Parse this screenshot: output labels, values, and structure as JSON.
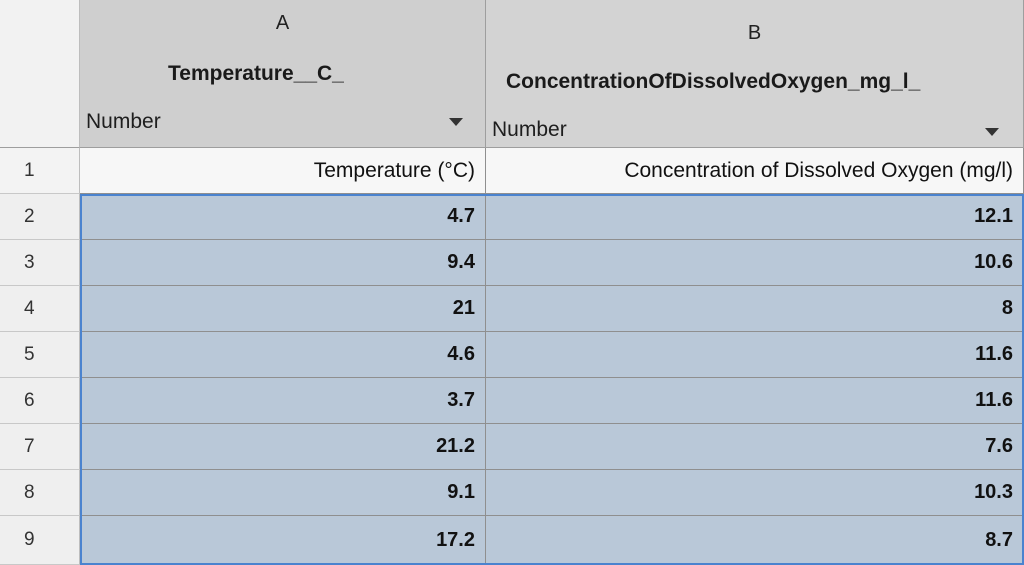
{
  "columns": [
    {
      "letter": "A",
      "name": "Temperature__C_",
      "type": "Number"
    },
    {
      "letter": "B",
      "name": "ConcentrationOfDissolvedOxygen_mg_l_",
      "type": "Number"
    }
  ],
  "rows": [
    {
      "num": "1",
      "a": "Temperature (°C)",
      "b": "Concentration of Dissolved Oxygen (mg/l)"
    },
    {
      "num": "2",
      "a": "4.7",
      "b": "12.1"
    },
    {
      "num": "3",
      "a": "9.4",
      "b": "10.6"
    },
    {
      "num": "4",
      "a": "21",
      "b": "8"
    },
    {
      "num": "5",
      "a": "4.6",
      "b": "11.6"
    },
    {
      "num": "6",
      "a": "3.7",
      "b": "11.6"
    },
    {
      "num": "7",
      "a": "21.2",
      "b": "7.6"
    },
    {
      "num": "8",
      "a": "9.1",
      "b": "10.3"
    },
    {
      "num": "9",
      "a": "17.2",
      "b": "8.7"
    }
  ]
}
